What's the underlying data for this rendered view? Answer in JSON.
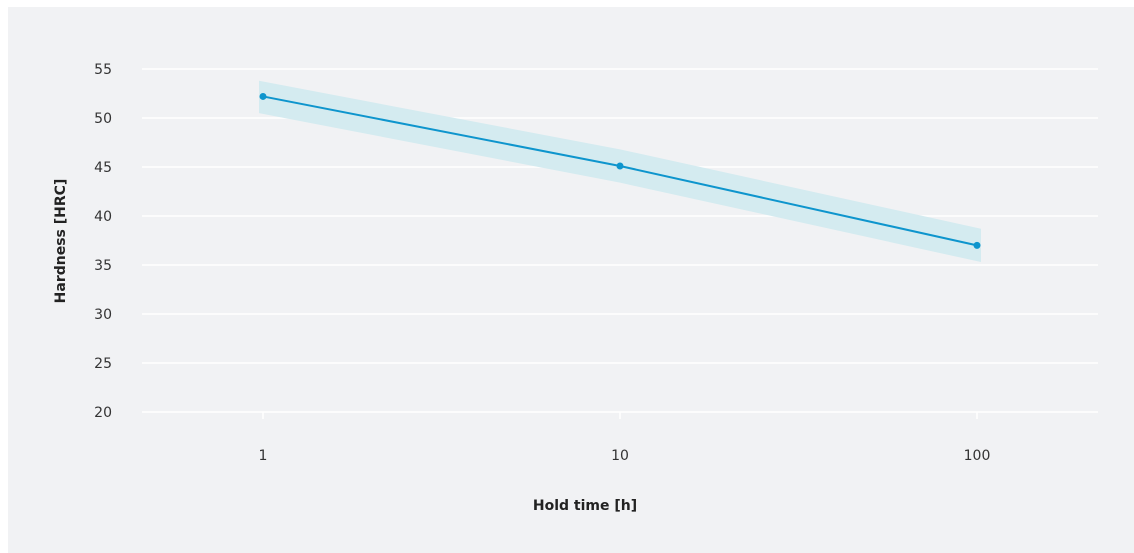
{
  "chart_data": {
    "type": "line",
    "title": "",
    "xlabel": "Hold time [h]",
    "ylabel": "Hardness [HRC]",
    "x_scale": "log",
    "x_ticks": [
      "1",
      "10",
      "100"
    ],
    "x": [
      1,
      10,
      100
    ],
    "y_ticks": [
      "20",
      "25",
      "30",
      "35",
      "40",
      "45",
      "50",
      "55"
    ],
    "ylim": [
      20,
      55
    ],
    "grid": "horizontal",
    "legend": "none",
    "series": [
      {
        "values": [
          52.2,
          45.1,
          37.0
        ],
        "band_upper": [
          53.8,
          46.8,
          38.7
        ],
        "band_lower": [
          50.5,
          43.4,
          35.3
        ],
        "color": "#0e95cd",
        "band_color": "#d4ebf0"
      }
    ]
  }
}
